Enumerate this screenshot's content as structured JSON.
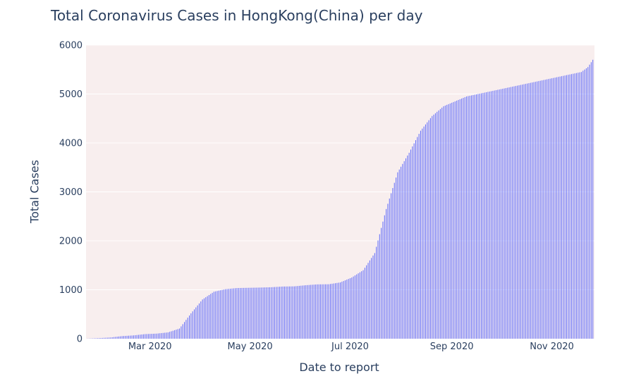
{
  "chart_data": {
    "type": "bar",
    "title": "Total Coronavirus Cases in HongKong(China) per day",
    "xlabel": "Date to report",
    "ylabel": "Total Cases",
    "ylim": [
      0,
      6000
    ],
    "yticks": [
      0,
      1000,
      2000,
      3000,
      4000,
      5000,
      6000
    ],
    "xlim": [
      "2020-01-22",
      "2020-11-27"
    ],
    "xticks": [
      {
        "label": "Mar 2020",
        "date": "2020-03-01"
      },
      {
        "label": "May 2020",
        "date": "2020-05-01"
      },
      {
        "label": "Jul 2020",
        "date": "2020-07-01"
      },
      {
        "label": "Sep 2020",
        "date": "2020-09-01"
      },
      {
        "label": "Nov 2020",
        "date": "2020-11-01"
      }
    ],
    "grid": true,
    "bar_color": "#636efa",
    "plot_bgcolor": "#f8eeee",
    "series": [
      {
        "x": [
          "2020-01-23",
          "2020-01-30",
          "2020-02-06",
          "2020-02-13",
          "2020-02-20",
          "2020-02-27",
          "2020-03-05",
          "2020-03-12",
          "2020-03-19",
          "2020-03-26",
          "2020-04-02",
          "2020-04-09",
          "2020-04-16",
          "2020-04-23",
          "2020-04-30",
          "2020-05-07",
          "2020-05-14",
          "2020-05-21",
          "2020-05-28",
          "2020-06-04",
          "2020-06-11",
          "2020-06-18",
          "2020-06-25",
          "2020-07-02",
          "2020-07-09",
          "2020-07-16",
          "2020-07-23",
          "2020-07-30",
          "2020-08-06",
          "2020-08-13",
          "2020-08-20",
          "2020-08-27",
          "2020-09-03",
          "2020-09-10",
          "2020-09-17",
          "2020-09-24",
          "2020-10-01",
          "2020-10-08",
          "2020-10-15",
          "2020-10-22",
          "2020-10-29",
          "2020-11-05",
          "2020-11-12",
          "2020-11-19",
          "2020-11-23",
          "2020-11-26"
        ],
        "y": [
          2,
          12,
          25,
          53,
          68,
          94,
          104,
          129,
          208,
          518,
          802,
          960,
          1012,
          1035,
          1040,
          1045,
          1052,
          1066,
          1070,
          1093,
          1110,
          1113,
          1150,
          1250,
          1400,
          1750,
          2650,
          3400,
          3800,
          4250,
          4550,
          4750,
          4850,
          4950,
          5000,
          5050,
          5100,
          5150,
          5200,
          5250,
          5300,
          5350,
          5400,
          5450,
          5550,
          5700
        ]
      }
    ]
  }
}
